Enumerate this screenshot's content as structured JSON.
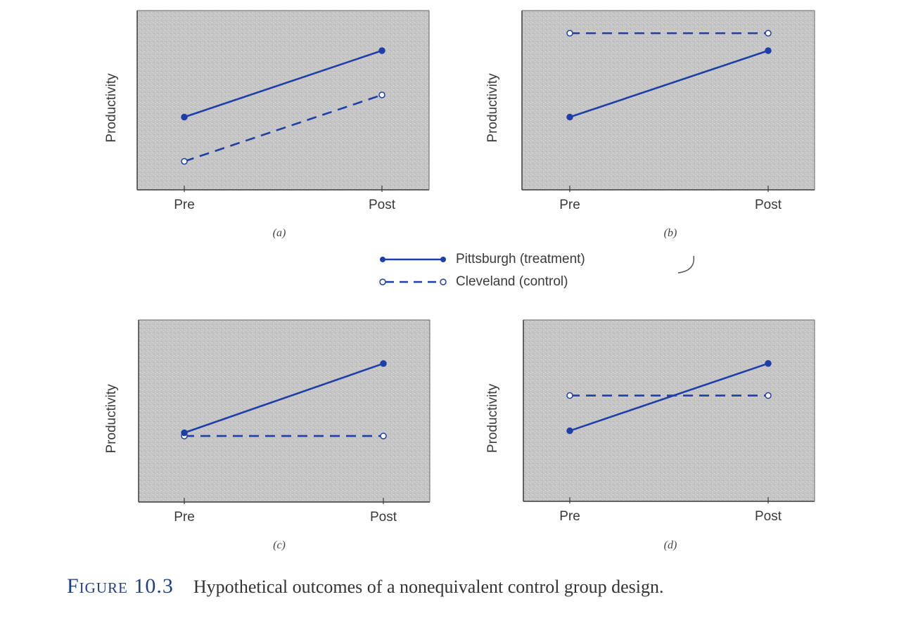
{
  "chart_data": [
    {
      "panel": "(a)",
      "type": "line",
      "categories": [
        "Pre",
        "Post"
      ],
      "ylabel": "Productivity",
      "ylim": [
        0,
        10
      ],
      "grid": false,
      "series": [
        {
          "name": "Pittsburgh (treatment)",
          "style": "solid",
          "marker": "filled",
          "values": [
            4.6,
            8.8
          ]
        },
        {
          "name": "Cleveland (control)",
          "style": "dashed",
          "marker": "open",
          "values": [
            1.8,
            6.0
          ]
        }
      ]
    },
    {
      "panel": "(b)",
      "type": "line",
      "categories": [
        "Pre",
        "Post"
      ],
      "ylabel": "Productivity",
      "ylim": [
        0,
        10
      ],
      "grid": false,
      "series": [
        {
          "name": "Pittsburgh (treatment)",
          "style": "solid",
          "marker": "filled",
          "values": [
            4.6,
            8.8
          ]
        },
        {
          "name": "Cleveland (control)",
          "style": "dashed",
          "marker": "open",
          "values": [
            9.9,
            9.9
          ]
        }
      ]
    },
    {
      "panel": "(c)",
      "type": "line",
      "categories": [
        "Pre",
        "Post"
      ],
      "ylabel": "Productivity",
      "ylim": [
        0,
        10
      ],
      "grid": false,
      "series": [
        {
          "name": "Pittsburgh (treatment)",
          "style": "solid",
          "marker": "filled",
          "values": [
            4.3,
            8.6
          ]
        },
        {
          "name": "Cleveland (control)",
          "style": "dashed",
          "marker": "open",
          "values": [
            4.1,
            4.1
          ]
        }
      ]
    },
    {
      "panel": "(d)",
      "type": "line",
      "categories": [
        "Pre",
        "Post"
      ],
      "ylabel": "Productivity",
      "ylim": [
        0,
        10
      ],
      "grid": false,
      "series": [
        {
          "name": "Pittsburgh (treatment)",
          "style": "solid",
          "marker": "filled",
          "values": [
            4.4,
            8.6
          ]
        },
        {
          "name": "Cleveland (control)",
          "style": "dashed",
          "marker": "open",
          "values": [
            6.6,
            6.6
          ]
        }
      ]
    }
  ],
  "legend": {
    "treatment_label": "Pittsburgh (treatment)",
    "control_label": "Cleveland (control)"
  },
  "caption": {
    "figure_label": "Figure 10.3",
    "text": "Hypothetical outcomes of a nonequivalent control group design."
  },
  "colors": {
    "line": "#1f3fa8",
    "plot_background": "#c6c6c6",
    "frame": "#3a3a3a",
    "text": "#3a3a3a"
  }
}
